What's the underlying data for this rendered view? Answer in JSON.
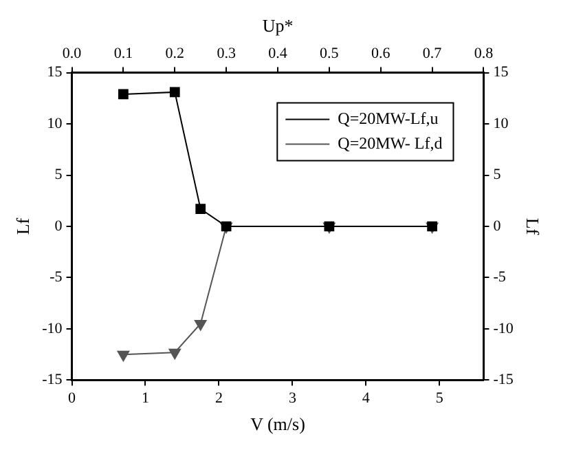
{
  "chart_data": {
    "type": "line",
    "xlabel": "V (m/s)",
    "ylabel": "Lf",
    "x2label": "Up*",
    "y2label": "Lf",
    "xlim": [
      0,
      5.6
    ],
    "xticks": [
      0,
      1,
      2,
      3,
      4,
      5
    ],
    "x2lim": [
      0,
      0.8
    ],
    "x2ticks": [
      {
        "value": 0,
        "label": "0.0"
      },
      {
        "value": 0.1,
        "label": "0.1"
      },
      {
        "value": 0.2,
        "label": "0.2"
      },
      {
        "value": 0.3,
        "label": "0.3"
      },
      {
        "value": 0.4,
        "label": "0.4"
      },
      {
        "value": 0.5,
        "label": "0.5"
      },
      {
        "value": 0.6,
        "label": "0.6"
      },
      {
        "value": 0.7,
        "label": "0.7"
      },
      {
        "value": 0.8,
        "label": "0.8"
      }
    ],
    "ylim": [
      -15,
      15
    ],
    "yticks": [
      -15,
      -10,
      -5,
      0,
      5,
      10,
      15
    ],
    "y2lim": [
      -15,
      15
    ],
    "y2ticks": [
      -15,
      -10,
      -5,
      0,
      5,
      10,
      15
    ],
    "x": [
      0.7,
      1.4,
      1.75,
      2.1,
      3.5,
      4.9
    ],
    "series": [
      {
        "name": "Q=20MW-Lf,u",
        "color": "#000000",
        "marker": "square",
        "values": [
          12.9,
          13.1,
          1.7,
          0,
          0,
          0
        ]
      },
      {
        "name": "Q=20MW- Lf,d",
        "color": "#555555",
        "marker": "triangle",
        "values": [
          -12.5,
          -12.3,
          -9.5,
          0,
          0,
          0
        ]
      }
    ],
    "legend": "top right",
    "grid": false,
    "line_style": "solid"
  }
}
